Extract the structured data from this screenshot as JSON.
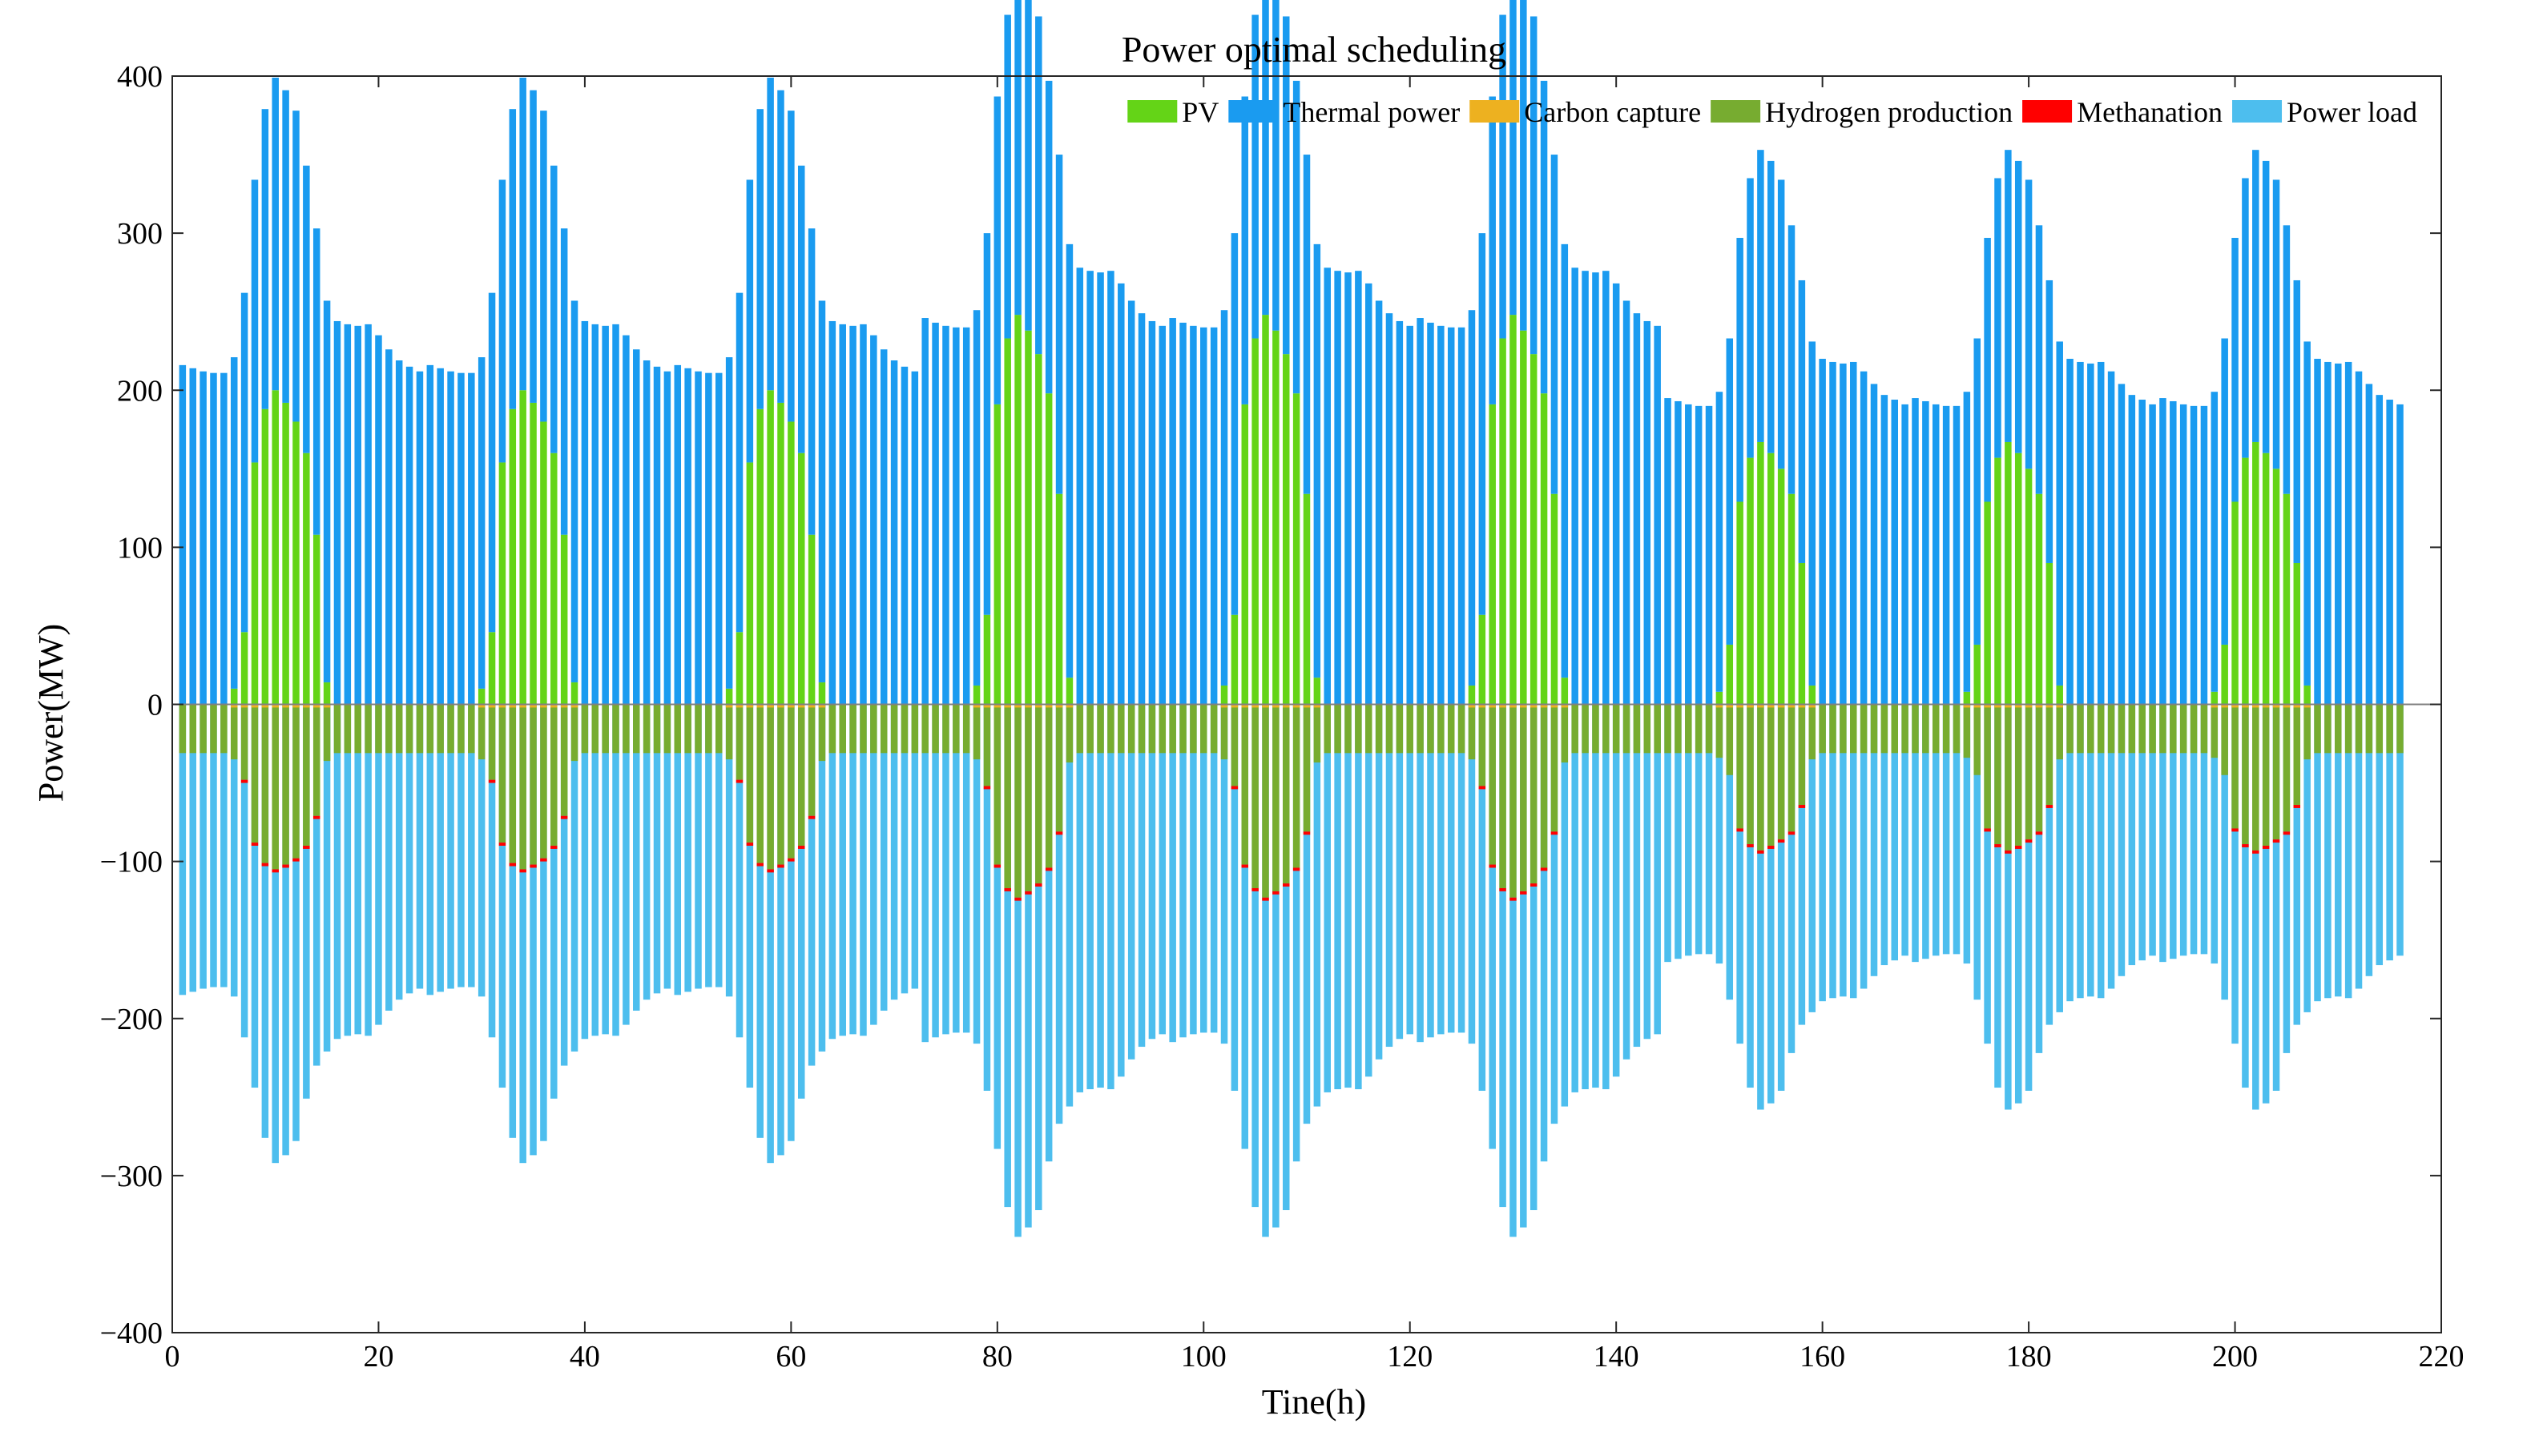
{
  "chart_data": {
    "type": "bar",
    "stacked": true,
    "title": "Power optimal scheduling",
    "xlabel": "Tine(h)",
    "ylabel": "Power(MW)",
    "xlim": [
      0,
      220
    ],
    "ylim": [
      -400,
      400
    ],
    "xticks": [
      0,
      20,
      40,
      60,
      80,
      100,
      120,
      140,
      160,
      180,
      200,
      220
    ],
    "yticks": [
      -400,
      -300,
      -200,
      -100,
      0,
      100,
      200,
      300,
      400
    ],
    "xtick_labels": [
      "0",
      "20",
      "40",
      "60",
      "80",
      "100",
      "120",
      "140",
      "160",
      "180",
      "200",
      "220"
    ],
    "ytick_labels": [
      "−400",
      "−300",
      "−200",
      "−100",
      "0",
      "100",
      "200",
      "300",
      "400"
    ],
    "hours": 216,
    "legend_position": "top-right",
    "days": [
      {
        "start_hour": 1,
        "pv_peak": 200,
        "load_factor": 1.0
      },
      {
        "start_hour": 25,
        "pv_peak": 200,
        "load_factor": 1.0
      },
      {
        "start_hour": 49,
        "pv_peak": 200,
        "load_factor": 1.0
      },
      {
        "start_hour": 73,
        "pv_peak": 248,
        "load_factor": 1.16
      },
      {
        "start_hour": 97,
        "pv_peak": 248,
        "load_factor": 1.16
      },
      {
        "start_hour": 121,
        "pv_peak": 248,
        "load_factor": 1.16
      },
      {
        "start_hour": 145,
        "pv_peak": 167,
        "load_factor": 0.885
      },
      {
        "start_hour": 169,
        "pv_peak": 167,
        "load_factor": 0.885
      },
      {
        "start_hour": 193,
        "pv_peak": 167,
        "load_factor": 0.885
      }
    ],
    "daily_base_load_mw": [
      185,
      183,
      181,
      180,
      180,
      186,
      212,
      244,
      276,
      292,
      287,
      278,
      251,
      230,
      221,
      213,
      211,
      210,
      211,
      204,
      195,
      188,
      184,
      181
    ],
    "daily_pv_shape": [
      0,
      0,
      0,
      0,
      0,
      0.05,
      0.23,
      0.77,
      0.94,
      1.0,
      0.96,
      0.9,
      0.8,
      0.54,
      0.07,
      0,
      0,
      0,
      0,
      0,
      0,
      0,
      0,
      0
    ],
    "hydrogen_base_mw": -31,
    "hydrogen_pv_ratio": 0.37,
    "methanation_mw": -2,
    "carbon_capture_daytime_mw": 2,
    "series": [
      {
        "name": "PV",
        "color": "#64d417",
        "side": "positive"
      },
      {
        "name": "Thermal power",
        "color": "#1a9bf0",
        "side": "positive"
      },
      {
        "name": "Carbon capture",
        "color": "#edb120",
        "side": "negative"
      },
      {
        "name": "Hydrogen production",
        "color": "#77ac30",
        "side": "negative"
      },
      {
        "name": "Methanation",
        "color": "#ff0000",
        "side": "negative"
      },
      {
        "name": "Power load",
        "color": "#4dbeee",
        "side": "negative"
      }
    ]
  }
}
